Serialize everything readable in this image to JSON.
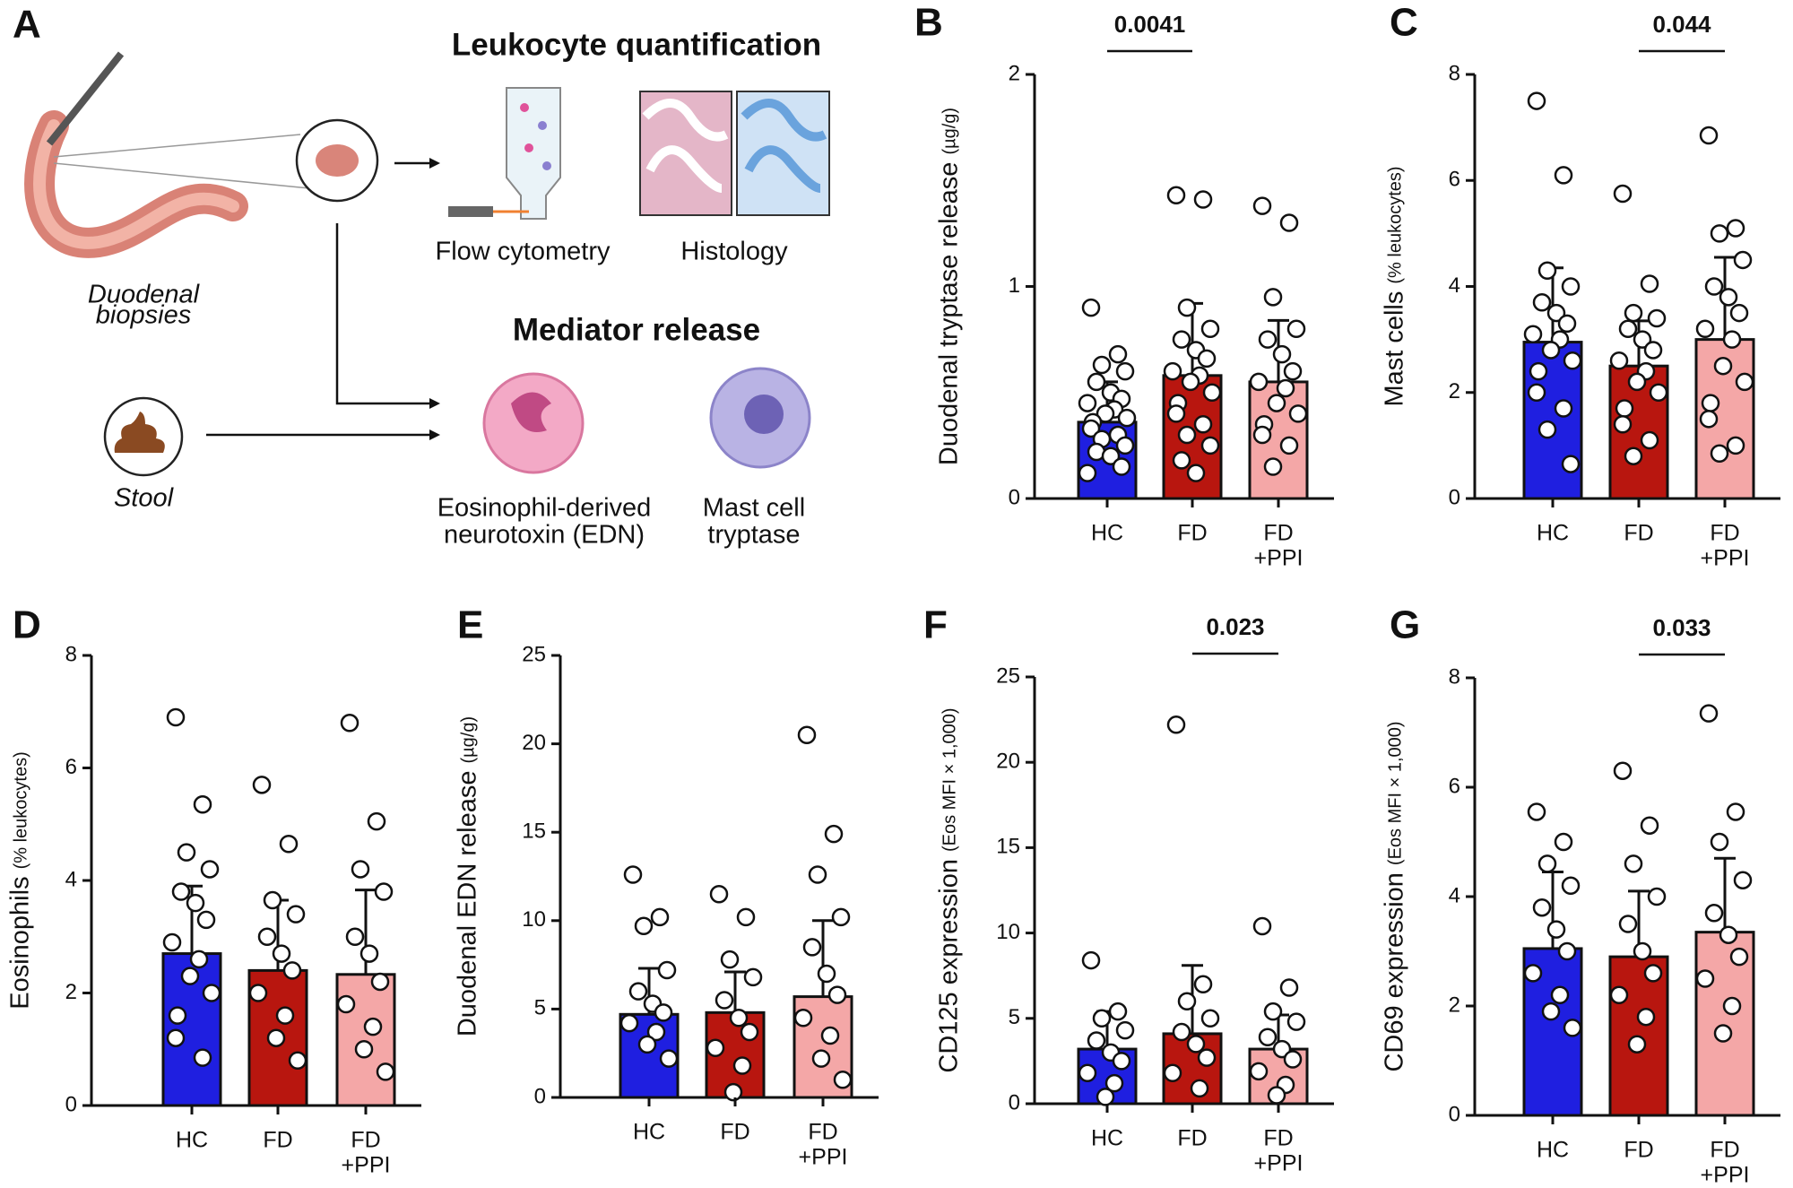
{
  "panel_a": {
    "panel": "A",
    "leukocyte_title": "Leukocyte quantification",
    "flow_label": "Flow cytometry",
    "histology_label": "Histology",
    "biopsy_label": [
      "Duodenal",
      "biopsies"
    ],
    "mediator_title": "Mediator release",
    "stool_label": "Stool",
    "edn_label": [
      "Eosinophil-derived",
      "neurotoxin (EDN)"
    ],
    "tryptase_label": [
      "Mast cell",
      "tryptase"
    ]
  },
  "chart_data": [
    {
      "type": "bar",
      "panel": "B",
      "ylabel": "Duodenal tryptase release",
      "ylabel_unit": "(µg/g)",
      "categories": [
        [
          "HC"
        ],
        [
          "FD"
        ],
        [
          "FD",
          "+PPI"
        ]
      ],
      "colors": [
        "#1f1fe0",
        "#b8160f",
        "#f4a7a7"
      ],
      "values": [
        0.36,
        0.58,
        0.55
      ],
      "errors": [
        0.19,
        0.34,
        0.29
      ],
      "points": [
        [
          0.9,
          0.68,
          0.63,
          0.6,
          0.55,
          0.5,
          0.47,
          0.45,
          0.42,
          0.4,
          0.38,
          0.36,
          0.33,
          0.3,
          0.28,
          0.25,
          0.22,
          0.2,
          0.15,
          0.12
        ],
        [
          1.43,
          1.41,
          0.9,
          0.8,
          0.75,
          0.7,
          0.66,
          0.6,
          0.58,
          0.55,
          0.5,
          0.45,
          0.4,
          0.35,
          0.3,
          0.25,
          0.18,
          0.12
        ],
        [
          1.38,
          1.3,
          0.95,
          0.8,
          0.75,
          0.68,
          0.6,
          0.55,
          0.52,
          0.45,
          0.4,
          0.35,
          0.3,
          0.25,
          0.15
        ]
      ],
      "ylim": [
        0,
        2
      ],
      "yticks": [
        0,
        1,
        2
      ],
      "brackets": [
        {
          "categories": [
            0,
            1
          ],
          "label": "0.0041"
        }
      ]
    },
    {
      "type": "bar",
      "panel": "C",
      "ylabel": "Mast cells",
      "ylabel_unit": "(% leukocytes)",
      "categories": [
        [
          "HC"
        ],
        [
          "FD"
        ],
        [
          "FD",
          "+PPI"
        ]
      ],
      "colors": [
        "#1f1fe0",
        "#b8160f",
        "#f4a7a7"
      ],
      "values": [
        2.95,
        2.5,
        3.0
      ],
      "errors": [
        1.4,
        0.85,
        1.55
      ],
      "points": [
        [
          7.5,
          6.1,
          4.3,
          4.0,
          3.7,
          3.5,
          3.3,
          3.1,
          3.0,
          2.8,
          2.6,
          2.4,
          2.0,
          1.7,
          1.3,
          0.65
        ],
        [
          5.75,
          4.05,
          3.5,
          3.4,
          3.2,
          3.0,
          2.8,
          2.6,
          2.4,
          2.2,
          2.0,
          1.7,
          1.4,
          1.1,
          0.8
        ],
        [
          6.85,
          5.1,
          5.0,
          4.5,
          4.0,
          3.8,
          3.5,
          3.2,
          3.0,
          2.5,
          2.2,
          1.8,
          1.5,
          1.0,
          0.85
        ]
      ],
      "ylim": [
        0,
        8
      ],
      "yticks": [
        0,
        2,
        4,
        6,
        8
      ],
      "brackets": [
        {
          "categories": [
            1,
            2
          ],
          "label": "0.044"
        }
      ]
    },
    {
      "type": "bar",
      "panel": "D",
      "ylabel": "Eosinophils",
      "ylabel_unit": "(% leukocytes)",
      "categories": [
        [
          "HC"
        ],
        [
          "FD"
        ],
        [
          "FD",
          "+PPI"
        ]
      ],
      "colors": [
        "#1f1fe0",
        "#b8160f",
        "#f4a7a7"
      ],
      "values": [
        2.7,
        2.4,
        2.33
      ],
      "errors": [
        1.2,
        1.25,
        1.5
      ],
      "points": [
        [
          6.9,
          5.35,
          4.5,
          4.2,
          3.8,
          3.6,
          3.3,
          2.9,
          2.6,
          2.3,
          2.0,
          1.6,
          1.2,
          0.85
        ],
        [
          5.7,
          4.65,
          3.65,
          3.4,
          3.0,
          2.7,
          2.4,
          2.0,
          1.6,
          1.2,
          0.8
        ],
        [
          6.8,
          5.05,
          4.2,
          3.8,
          3.0,
          2.7,
          2.2,
          1.8,
          1.4,
          1.0,
          0.6
        ]
      ],
      "ylim": [
        0,
        8
      ],
      "yticks": [
        0,
        2,
        4,
        6,
        8
      ],
      "brackets": []
    },
    {
      "type": "bar",
      "panel": "E",
      "ylabel": "Duodenal EDN release",
      "ylabel_unit": "(µg/g)",
      "categories": [
        [
          "HC"
        ],
        [
          "FD"
        ],
        [
          "FD",
          "+PPI"
        ]
      ],
      "colors": [
        "#1f1fe0",
        "#b8160f",
        "#f4a7a7"
      ],
      "values": [
        4.7,
        4.8,
        5.7
      ],
      "errors": [
        2.6,
        2.3,
        4.3
      ],
      "points": [
        [
          12.6,
          10.2,
          9.7,
          7.2,
          6.0,
          5.3,
          4.8,
          4.2,
          3.7,
          3.0,
          2.2
        ],
        [
          11.5,
          10.2,
          7.8,
          6.8,
          5.5,
          4.5,
          3.7,
          2.8,
          1.8,
          0.3
        ],
        [
          20.5,
          14.9,
          12.6,
          10.2,
          8.5,
          7.0,
          5.8,
          4.5,
          3.5,
          2.2,
          1.0
        ]
      ],
      "ylim": [
        0,
        25
      ],
      "yticks": [
        0,
        5,
        10,
        15,
        20,
        25
      ],
      "brackets": []
    },
    {
      "type": "bar",
      "panel": "F",
      "ylabel": "CD125 expression",
      "ylabel_unit": "(Eos MFI × 1,000)",
      "categories": [
        [
          "HC"
        ],
        [
          "FD"
        ],
        [
          "FD",
          "+PPI"
        ]
      ],
      "colors": [
        "#1f1fe0",
        "#b8160f",
        "#f4a7a7"
      ],
      "values": [
        3.2,
        4.1,
        3.2
      ],
      "errors": [
        2.2,
        4.0,
        2.0
      ],
      "points": [
        [
          8.4,
          5.4,
          5.0,
          4.3,
          3.7,
          3.0,
          2.5,
          1.8,
          1.2,
          0.4
        ],
        [
          22.2,
          7.0,
          6.0,
          5.0,
          4.2,
          3.5,
          2.7,
          1.8,
          0.9
        ],
        [
          10.4,
          6.8,
          5.4,
          4.8,
          3.9,
          3.2,
          2.6,
          1.9,
          1.1,
          0.5
        ]
      ],
      "ylim": [
        0,
        25
      ],
      "yticks": [
        0,
        5,
        10,
        15,
        20,
        25
      ],
      "brackets": [
        {
          "categories": [
            1,
            2
          ],
          "label": "0.023"
        }
      ]
    },
    {
      "type": "bar",
      "panel": "G",
      "ylabel": "CD69 expression",
      "ylabel_unit": "(Eos MFI × 1,000)",
      "categories": [
        [
          "HC"
        ],
        [
          "FD"
        ],
        [
          "FD",
          "+PPI"
        ]
      ],
      "colors": [
        "#1f1fe0",
        "#b8160f",
        "#f4a7a7"
      ],
      "values": [
        3.05,
        2.9,
        3.35
      ],
      "errors": [
        1.4,
        1.2,
        1.35
      ],
      "points": [
        [
          5.55,
          5.0,
          4.6,
          4.2,
          3.8,
          3.4,
          3.0,
          2.6,
          2.2,
          1.9,
          1.6
        ],
        [
          6.3,
          5.3,
          4.6,
          4.0,
          3.5,
          3.0,
          2.6,
          2.2,
          1.8,
          1.3
        ],
        [
          7.35,
          5.55,
          5.0,
          4.3,
          3.7,
          3.3,
          2.9,
          2.5,
          2.0,
          1.5
        ]
      ],
      "ylim": [
        0,
        8
      ],
      "yticks": [
        0,
        2,
        4,
        6,
        8
      ],
      "brackets": [
        {
          "categories": [
            1,
            2
          ],
          "label": "0.033"
        }
      ]
    }
  ]
}
